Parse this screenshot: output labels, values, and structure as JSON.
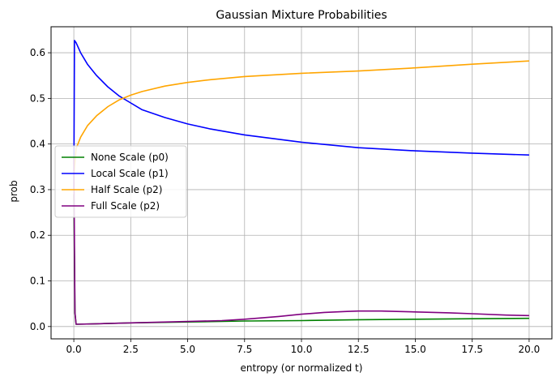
{
  "chart_data": {
    "type": "line",
    "title": "Gaussian Mixture Probabilities",
    "xlabel": "entropy (or normalized t)",
    "ylabel": "prob",
    "xlim": [
      -1.0,
      21.0
    ],
    "ylim": [
      -0.027,
      0.657
    ],
    "xticks": [
      0.0,
      2.5,
      5.0,
      7.5,
      10.0,
      12.5,
      15.0,
      17.5,
      20.0
    ],
    "xtick_labels": [
      "0.0",
      "2.5",
      "5.0",
      "7.5",
      "10.0",
      "12.5",
      "15.0",
      "17.5",
      "20.0"
    ],
    "yticks": [
      0.0,
      0.1,
      0.2,
      0.3,
      0.4,
      0.5,
      0.6
    ],
    "ytick_labels": [
      "0.0",
      "0.1",
      "0.2",
      "0.3",
      "0.4",
      "0.5",
      "0.6"
    ],
    "grid": true,
    "legend_position": "center-left",
    "series": [
      {
        "name": "None Scale (p0)",
        "color": "#008000",
        "x": [
          0.0,
          0.05,
          0.1,
          1.0,
          2.5,
          5.0,
          7.5,
          10.0,
          12.5,
          15.0,
          17.5,
          20.0
        ],
        "y": [
          0.29,
          0.03,
          0.005,
          0.006,
          0.008,
          0.01,
          0.012,
          0.013,
          0.015,
          0.016,
          0.017,
          0.018
        ]
      },
      {
        "name": "Local Scale (p1)",
        "color": "#0000ff",
        "x": [
          0.0,
          0.03,
          0.1,
          0.3,
          0.6,
          1.0,
          1.5,
          2.0,
          2.5,
          3.0,
          4.0,
          5.0,
          6.0,
          7.5,
          10.0,
          12.5,
          15.0,
          17.5,
          20.0
        ],
        "y": [
          0.3,
          0.627,
          0.622,
          0.6,
          0.575,
          0.55,
          0.525,
          0.505,
          0.49,
          0.475,
          0.458,
          0.444,
          0.433,
          0.42,
          0.404,
          0.392,
          0.385,
          0.38,
          0.376
        ]
      },
      {
        "name": "Half Scale (p2)",
        "color": "#ffa500",
        "x": [
          0.0,
          0.1,
          0.3,
          0.6,
          1.0,
          1.5,
          2.0,
          2.5,
          3.0,
          4.0,
          5.0,
          6.0,
          7.5,
          10.0,
          12.5,
          15.0,
          17.5,
          20.0
        ],
        "y": [
          0.33,
          0.39,
          0.415,
          0.44,
          0.462,
          0.482,
          0.497,
          0.507,
          0.515,
          0.527,
          0.535,
          0.541,
          0.548,
          0.555,
          0.56,
          0.567,
          0.575,
          0.582
        ]
      },
      {
        "name": "Full Scale (p2)",
        "color": "#800080",
        "x": [
          0.0,
          0.05,
          0.1,
          1.0,
          2.5,
          5.0,
          6.5,
          7.5,
          9.0,
          10.0,
          11.0,
          12.0,
          12.5,
          13.5,
          15.0,
          16.5,
          17.5,
          19.0,
          20.0
        ],
        "y": [
          0.37,
          0.03,
          0.005,
          0.006,
          0.008,
          0.011,
          0.013,
          0.016,
          0.022,
          0.027,
          0.031,
          0.033,
          0.034,
          0.034,
          0.032,
          0.03,
          0.028,
          0.025,
          0.024
        ]
      }
    ]
  }
}
